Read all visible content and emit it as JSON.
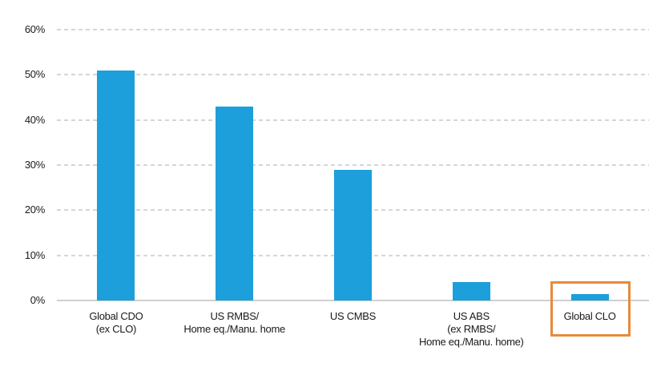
{
  "chart_data": {
    "type": "bar",
    "title": "",
    "xlabel": "",
    "ylabel": "",
    "categories": [
      "Global CDO\n(ex CLO)",
      "US RMBS/\nHome eq./Manu. home",
      "US CMBS",
      "US ABS\n(ex RMBS/\nHome eq./Manu. home)",
      "Global CLO"
    ],
    "values": [
      51,
      43,
      29,
      4,
      1.5
    ],
    "y_ticks": [
      "60%",
      "50%",
      "40%",
      "30%",
      "20%",
      "10%",
      "0%"
    ],
    "ylim": [
      0,
      60
    ],
    "grid": "dashed-horizontal",
    "legend": "none",
    "bar_color": "#1c9fdb",
    "gridline_color": "#d6d6d6",
    "axis_line_color": "#d0d0d0",
    "text_color": "#1a1a1a",
    "highlight": {
      "category": "Global CLO",
      "style": "orange-box-outline",
      "color": "#e78a3d"
    }
  }
}
